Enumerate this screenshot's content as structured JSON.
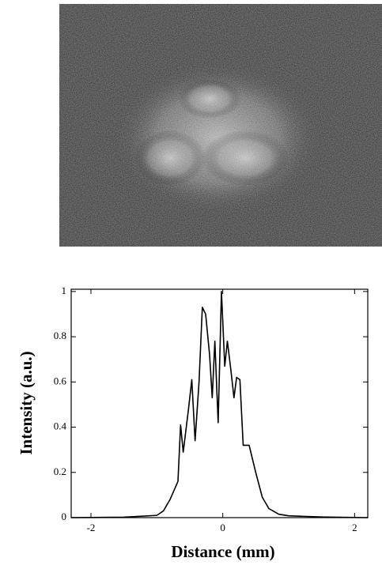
{
  "chart_data": {
    "type": "line",
    "xlabel": "Distance  (mm)",
    "ylabel": "Intensity  (a.u.)",
    "x": [
      -2.3,
      -1.5,
      -1.0,
      -0.9,
      -0.8,
      -0.68,
      -0.64,
      -0.6,
      -0.52,
      -0.47,
      -0.42,
      -0.36,
      -0.31,
      -0.26,
      -0.2,
      -0.16,
      -0.12,
      -0.07,
      -0.02,
      0.03,
      0.07,
      0.12,
      0.17,
      0.21,
      0.26,
      0.31,
      0.4,
      0.5,
      0.6,
      0.7,
      0.85,
      1.0,
      1.5,
      2.2
    ],
    "values": [
      0,
      0.002,
      0.01,
      0.03,
      0.08,
      0.16,
      0.41,
      0.29,
      0.48,
      0.61,
      0.34,
      0.6,
      0.93,
      0.9,
      0.72,
      0.53,
      0.78,
      0.42,
      1.0,
      0.67,
      0.78,
      0.66,
      0.53,
      0.62,
      0.61,
      0.32,
      0.32,
      0.2,
      0.09,
      0.04,
      0.015,
      0.008,
      0.003,
      0
    ],
    "color": "#000000",
    "xlim": [
      -2.3,
      2.2
    ],
    "xticks": [
      -2,
      0,
      2
    ],
    "ylim": [
      0,
      1.01
    ],
    "yticks": [
      0,
      0.2,
      0.4,
      0.6,
      0.8,
      1
    ]
  }
}
